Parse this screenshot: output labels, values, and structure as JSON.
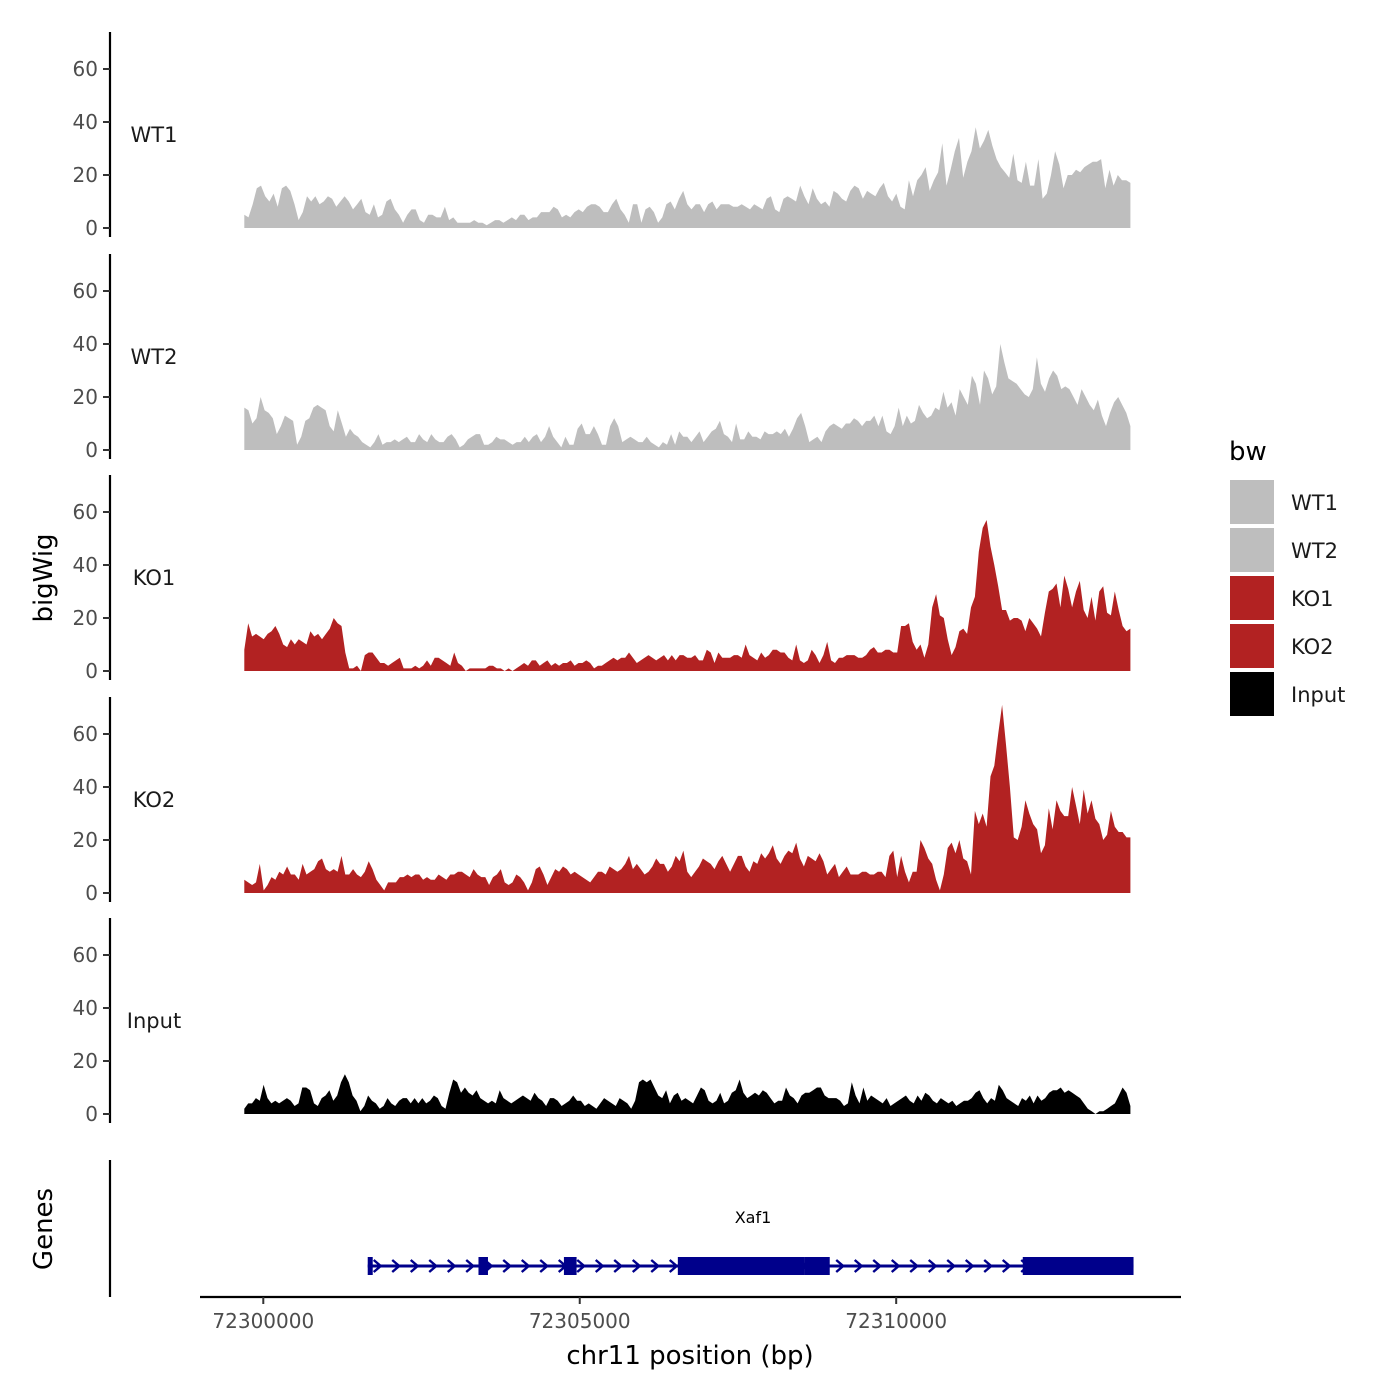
{
  "chart_data": {
    "type": "area",
    "ylabel": "bigWig",
    "xlabel": "chr11 position (bp)",
    "ylim": [
      0,
      75
    ],
    "yticks": [
      0,
      20,
      40,
      60
    ],
    "xlim": [
      72299000,
      72314500
    ],
    "xticks": [
      72300000,
      72305000,
      72310000
    ],
    "xtick_labels": [
      "72300000",
      "72305000",
      "72310000"
    ],
    "x_start": 72299700,
    "x_end": 72313700,
    "tracks": [
      {
        "name": "WT1",
        "color": "#bebebe",
        "values": [
          5,
          4,
          9,
          15,
          16,
          12,
          10,
          13,
          8,
          15,
          16,
          14,
          9,
          3,
          6,
          12,
          10,
          12,
          9,
          10,
          12,
          11,
          8,
          10,
          12,
          10,
          7,
          9,
          11,
          6,
          5,
          9,
          4,
          5,
          10,
          11,
          7,
          5,
          2,
          5,
          7,
          7,
          3,
          2,
          5,
          5,
          4,
          4,
          8,
          3,
          4,
          2,
          2,
          2,
          2,
          3,
          2,
          2,
          1,
          2,
          3,
          3,
          2,
          3,
          4,
          3,
          5,
          5,
          3,
          4,
          4,
          6,
          6,
          6,
          8,
          7,
          4,
          5,
          4,
          6,
          7,
          6,
          8,
          9,
          9,
          8,
          6,
          6,
          9,
          11,
          7,
          5,
          2,
          9,
          9,
          2,
          7,
          8,
          6,
          2,
          4,
          9,
          10,
          7,
          11,
          14,
          9,
          7,
          9,
          9,
          6,
          9,
          10,
          7,
          9,
          9,
          9,
          8,
          8,
          9,
          8,
          7,
          9,
          8,
          7,
          11,
          12,
          7,
          6,
          11,
          12,
          11,
          10,
          16,
          12,
          9,
          15,
          11,
          9,
          10,
          8,
          14,
          13,
          11,
          10,
          14,
          16,
          15,
          11,
          14,
          13,
          12,
          15,
          17,
          12,
          10,
          13,
          8,
          7,
          18,
          12,
          18,
          20,
          23,
          14,
          18,
          21,
          32,
          16,
          22,
          29,
          34,
          19,
          25,
          29,
          38,
          30,
          33,
          37,
          31,
          26,
          23,
          21,
          19,
          28,
          18,
          17,
          25,
          16,
          16,
          26,
          11,
          13,
          20,
          29,
          24,
          15,
          20,
          20,
          22,
          21,
          23,
          24,
          25,
          25,
          26,
          15,
          22,
          16,
          20,
          18,
          18,
          17
        ]
      },
      {
        "name": "WT2",
        "color": "#bebebe",
        "values": [
          16,
          15,
          10,
          12,
          20,
          15,
          14,
          12,
          6,
          9,
          13,
          12,
          11,
          2,
          5,
          11,
          12,
          16,
          17,
          16,
          15,
          9,
          7,
          15,
          10,
          5,
          8,
          6,
          5,
          3,
          2,
          1,
          3,
          6,
          2,
          3,
          3,
          4,
          3,
          4,
          5,
          3,
          3,
          6,
          4,
          3,
          6,
          4,
          3,
          3,
          5,
          6,
          4,
          1,
          2,
          4,
          5,
          6,
          6,
          2,
          2,
          3,
          5,
          4,
          4,
          3,
          2,
          3,
          3,
          5,
          3,
          5,
          6,
          3,
          5,
          9,
          5,
          3,
          1,
          5,
          2,
          2,
          8,
          10,
          6,
          6,
          9,
          6,
          2,
          2,
          9,
          12,
          9,
          3,
          4,
          5,
          4,
          3,
          3,
          5,
          3,
          2,
          1,
          3,
          2,
          6,
          2,
          7,
          5,
          5,
          3,
          5,
          7,
          3,
          5,
          7,
          8,
          11,
          6,
          5,
          3,
          10,
          4,
          4,
          7,
          5,
          5,
          4,
          7,
          6,
          6,
          7,
          6,
          8,
          5,
          8,
          12,
          14,
          9,
          3,
          4,
          5,
          3,
          7,
          9,
          10,
          9,
          8,
          10,
          10,
          12,
          11,
          9,
          11,
          11,
          13,
          9,
          13,
          7,
          6,
          9,
          16,
          9,
          13,
          10,
          11,
          17,
          14,
          12,
          13,
          16,
          15,
          22,
          16,
          18,
          13,
          23,
          20,
          17,
          28,
          25,
          17,
          30,
          27,
          21,
          24,
          40,
          33,
          27,
          26,
          25,
          23,
          21,
          20,
          23,
          35,
          25,
          22,
          27,
          30,
          28,
          23,
          24,
          23,
          20,
          17,
          23,
          20,
          17,
          15,
          19,
          13,
          9,
          14,
          18,
          20,
          17,
          14,
          9
        ]
      },
      {
        "name": "KO1",
        "color": "#b22222",
        "values": [
          8,
          18,
          13,
          14,
          13,
          12,
          14,
          15,
          17,
          14,
          10,
          9,
          12,
          10,
          12,
          11,
          10,
          15,
          13,
          14,
          12,
          14,
          16,
          20,
          18,
          17,
          7,
          1,
          1,
          2,
          0,
          6,
          7,
          7,
          5,
          3,
          3,
          2,
          3,
          4,
          5,
          1,
          1,
          1,
          2,
          1,
          2,
          4,
          2,
          5,
          5,
          4,
          3,
          2,
          7,
          3,
          2,
          0,
          1,
          1,
          1,
          1,
          1,
          2,
          2,
          1,
          1,
          0,
          1,
          0,
          1,
          2,
          3,
          2,
          4,
          4,
          2,
          3,
          4,
          2,
          3,
          2,
          3,
          3,
          4,
          2,
          3,
          3,
          4,
          3,
          1,
          2,
          2,
          3,
          4,
          5,
          4,
          5,
          5,
          7,
          5,
          3,
          4,
          5,
          6,
          5,
          4,
          5,
          6,
          4,
          6,
          4,
          6,
          6,
          5,
          5,
          6,
          4,
          4,
          8,
          7,
          3,
          7,
          5,
          5,
          5,
          6,
          6,
          5,
          10,
          6,
          5,
          4,
          7,
          5,
          6,
          8,
          8,
          7,
          7,
          5,
          4,
          10,
          4,
          3,
          4,
          8,
          6,
          3,
          6,
          11,
          4,
          3,
          5,
          5,
          6,
          6,
          6,
          5,
          5,
          6,
          8,
          9,
          7,
          7,
          8,
          8,
          7,
          7,
          17,
          17,
          18,
          11,
          8,
          10,
          5,
          10,
          24,
          29,
          21,
          20,
          12,
          6,
          9,
          15,
          16,
          14,
          24,
          28,
          45,
          54,
          57,
          47,
          40,
          32,
          23,
          23,
          19,
          20,
          20,
          19,
          15,
          20,
          18,
          16,
          13,
          22,
          30,
          31,
          33,
          24,
          36,
          31,
          24,
          30,
          34,
          23,
          20,
          28,
          19,
          30,
          32,
          22,
          21,
          30,
          23,
          17,
          15,
          16
        ]
      },
      {
        "name": "KO2",
        "color": "#b22222",
        "values": [
          5,
          4,
          3,
          4,
          11,
          1,
          3,
          6,
          5,
          8,
          7,
          10,
          7,
          7,
          5,
          11,
          7,
          8,
          9,
          12,
          13,
          9,
          8,
          9,
          8,
          14,
          7,
          7,
          9,
          7,
          6,
          8,
          12,
          9,
          5,
          3,
          1,
          4,
          4,
          4,
          6,
          6,
          7,
          6,
          7,
          7,
          5,
          6,
          5,
          5,
          7,
          6,
          5,
          7,
          7,
          8,
          8,
          7,
          6,
          9,
          7,
          6,
          6,
          3,
          6,
          7,
          9,
          4,
          3,
          4,
          7,
          6,
          4,
          1,
          4,
          9,
          10,
          7,
          3,
          6,
          9,
          8,
          10,
          9,
          7,
          8,
          7,
          6,
          5,
          4,
          6,
          8,
          8,
          7,
          10,
          9,
          8,
          9,
          11,
          14,
          9,
          11,
          9,
          7,
          8,
          10,
          13,
          11,
          11,
          8,
          10,
          14,
          12,
          16,
          8,
          6,
          8,
          10,
          13,
          12,
          11,
          9,
          12,
          14,
          11,
          8,
          11,
          14,
          14,
          10,
          8,
          12,
          11,
          15,
          13,
          15,
          18,
          13,
          11,
          14,
          16,
          15,
          19,
          13,
          10,
          14,
          13,
          12,
          15,
          12,
          7,
          9,
          11,
          6,
          8,
          10,
          7,
          7,
          7,
          8,
          8,
          7,
          7,
          8,
          8,
          6,
          14,
          16,
          6,
          14,
          8,
          4,
          8,
          8,
          20,
          17,
          13,
          11,
          5,
          1,
          7,
          17,
          19,
          15,
          20,
          13,
          12,
          7,
          31,
          26,
          30,
          25,
          44,
          48,
          60,
          71,
          56,
          40,
          21,
          20,
          25,
          35,
          30,
          26,
          24,
          15,
          18,
          32,
          24,
          35,
          31,
          29,
          29,
          40,
          33,
          26,
          39,
          30,
          35,
          28,
          26,
          20,
          22,
          31,
          25,
          23,
          23,
          21,
          21
        ]
      },
      {
        "name": "Input",
        "color": "#000000",
        "values": [
          2,
          4,
          4,
          6,
          5,
          11,
          6,
          4,
          5,
          4,
          5,
          6,
          5,
          3,
          4,
          10,
          10,
          9,
          4,
          3,
          6,
          7,
          9,
          5,
          7,
          12,
          15,
          12,
          7,
          5,
          1,
          3,
          7,
          5,
          4,
          2,
          3,
          6,
          4,
          3,
          5,
          6,
          6,
          4,
          6,
          4,
          6,
          4,
          5,
          7,
          6,
          3,
          2,
          8,
          13,
          12,
          8,
          10,
          8,
          7,
          9,
          6,
          5,
          4,
          5,
          4,
          9,
          6,
          5,
          4,
          5,
          6,
          7,
          6,
          5,
          8,
          6,
          5,
          3,
          6,
          6,
          5,
          3,
          4,
          5,
          7,
          5,
          5,
          3,
          4,
          3,
          2,
          4,
          6,
          5,
          4,
          3,
          6,
          5,
          4,
          2,
          5,
          12,
          13,
          12,
          13,
          10,
          7,
          6,
          9,
          4,
          7,
          8,
          5,
          6,
          5,
          4,
          7,
          10,
          9,
          5,
          4,
          5,
          8,
          4,
          5,
          8,
          9,
          13,
          8,
          6,
          7,
          8,
          7,
          9,
          8,
          6,
          4,
          5,
          5,
          10,
          7,
          6,
          4,
          7,
          8,
          8,
          9,
          10,
          10,
          7,
          6,
          6,
          6,
          5,
          3,
          4,
          12,
          7,
          4,
          10,
          5,
          7,
          6,
          5,
          4,
          6,
          3,
          4,
          5,
          6,
          7,
          5,
          4,
          7,
          5,
          8,
          7,
          5,
          4,
          6,
          5,
          4,
          5,
          3,
          4,
          5,
          5,
          6,
          8,
          9,
          6,
          4,
          6,
          5,
          11,
          9,
          6,
          5,
          4,
          3,
          6,
          5,
          7,
          4,
          7,
          5,
          6,
          8,
          9,
          9,
          10,
          8,
          9,
          8,
          7,
          6,
          4,
          2,
          1,
          0,
          1,
          1,
          2,
          3,
          4,
          7,
          10,
          8,
          3
        ]
      }
    ],
    "gene_track": {
      "label": "Genes",
      "gene_name": "Xaf1",
      "color": "#00008b",
      "strand": "+",
      "tx_start": 72301650,
      "tx_end": 72313750,
      "exons": [
        [
          72301650,
          72301700,
          "thin"
        ],
        [
          72303400,
          72303550,
          "thin"
        ],
        [
          72304750,
          72304950,
          "thin"
        ],
        [
          72306550,
          72308550,
          "thick"
        ],
        [
          72308550,
          72308950,
          "thick"
        ],
        [
          72312000,
          72313750,
          "thick"
        ]
      ]
    },
    "legend": {
      "title": "bw",
      "position": "right",
      "entries": [
        {
          "label": "WT1",
          "color": "#bebebe"
        },
        {
          "label": "WT2",
          "color": "#bebebe"
        },
        {
          "label": "KO1",
          "color": "#b22222"
        },
        {
          "label": "KO2",
          "color": "#b22222"
        },
        {
          "label": "Input",
          "color": "#000000"
        }
      ]
    }
  }
}
